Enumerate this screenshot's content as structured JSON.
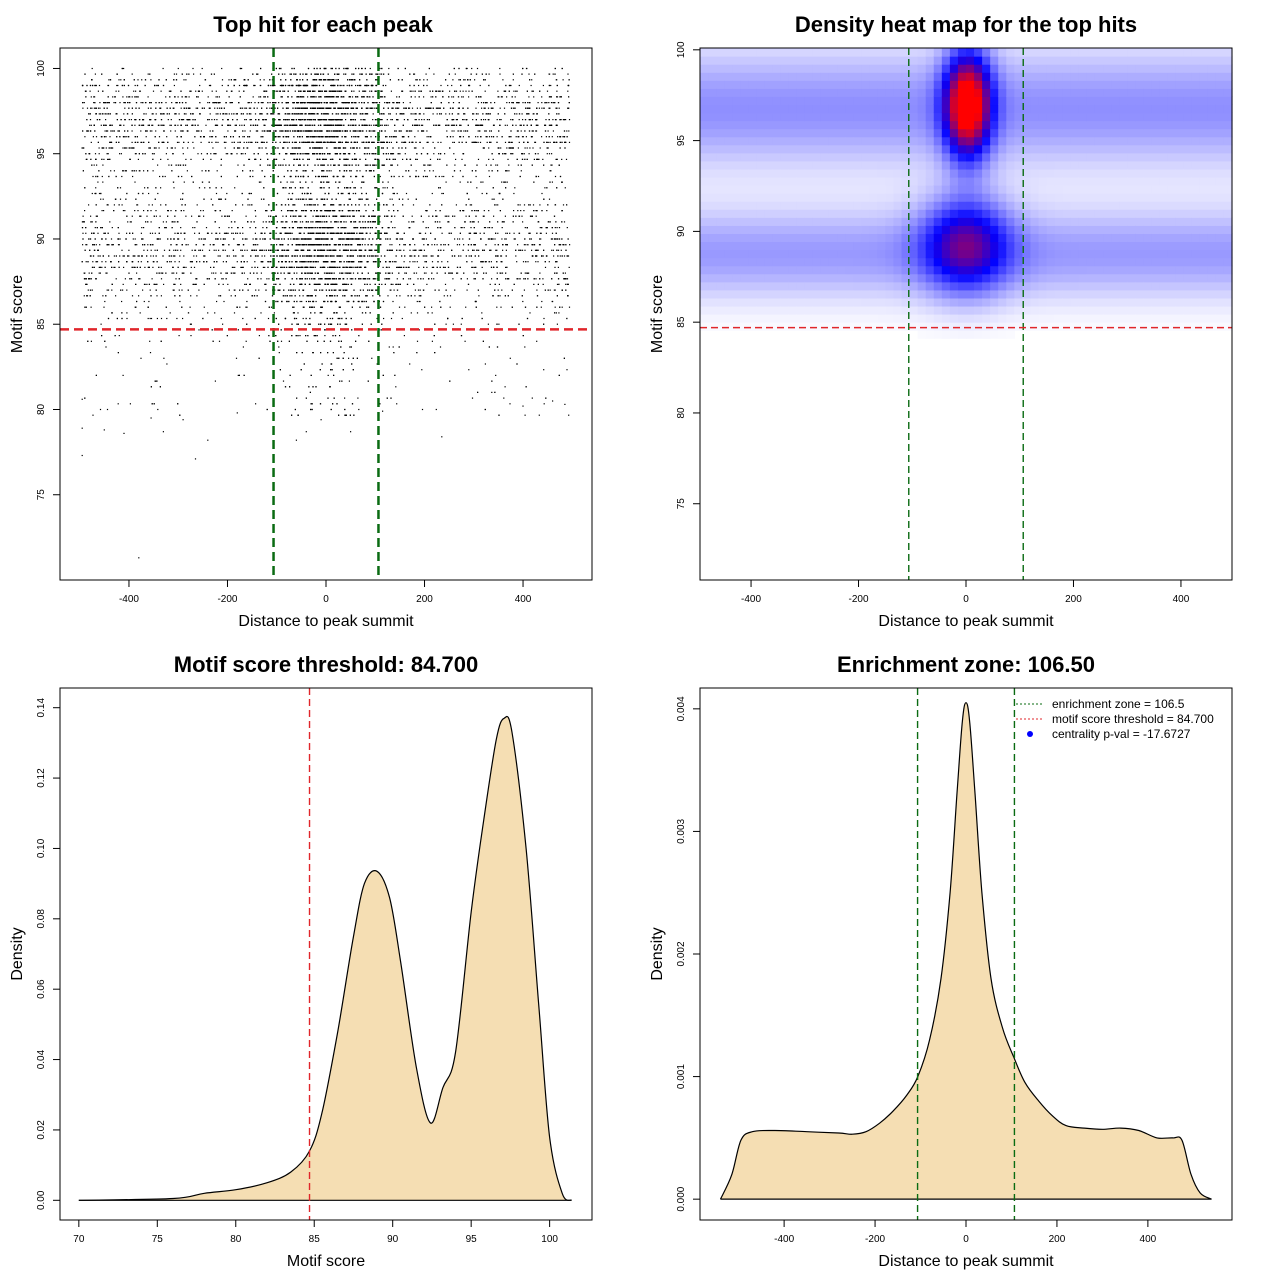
{
  "chart_data": [
    {
      "id": "scatter",
      "type": "scatter",
      "title": "Top hit for each peak",
      "xlabel": "Distance to peak summit",
      "ylabel": "Motif score",
      "xlim": [
        -540,
        540
      ],
      "ylim": [
        70,
        101.2
      ],
      "xticks": [
        "-400",
        "-200",
        "0",
        "200",
        "400"
      ],
      "xtick_values": [
        -400,
        -200,
        0,
        200,
        400
      ],
      "yticks": [
        "75",
        "80",
        "85",
        "90",
        "95",
        "100"
      ],
      "ytick_values": [
        75,
        80,
        85,
        90,
        95,
        100
      ],
      "hlines": [
        {
          "y": 84.7,
          "color": "#e0262b",
          "style": "dashed"
        }
      ],
      "vlines": [
        {
          "x": -106.5,
          "color": "#0a6b12",
          "style": "dashed"
        },
        {
          "x": 106.5,
          "color": "#0a6b12",
          "style": "dashed"
        }
      ],
      "point_color": "#000000",
      "points_description": "approx. 12000 top hits spread over x in [-495, 495], bands near y 89-90 and 95-99, densest around x = 0",
      "outliers": [
        [
          -495,
          80.6
        ],
        [
          -495,
          78.9
        ],
        [
          -495,
          77.3
        ],
        [
          -450,
          78.8
        ],
        [
          -410,
          78.6
        ],
        [
          -380,
          71.3
        ],
        [
          -355,
          79.5
        ],
        [
          -330,
          78.7
        ],
        [
          -290,
          79.4
        ],
        [
          -265,
          77.1
        ],
        [
          -240,
          78.2
        ],
        [
          -180,
          79.8
        ],
        [
          -60,
          78.2
        ],
        [
          -40,
          78.7
        ],
        [
          -10,
          79.4
        ],
        [
          50,
          78.7
        ],
        [
          115,
          79.9
        ],
        [
          235,
          78.4
        ],
        [
          400,
          80.2
        ],
        [
          460,
          80.5
        ],
        [
          485,
          80.3
        ]
      ],
      "grid": false,
      "legend": "none"
    },
    {
      "id": "heatmap",
      "type": "heatmap",
      "title": "Density heat map for the top hits",
      "xlabel": "Distance to peak summit",
      "ylabel": "Motif score",
      "xlim": [
        -495,
        495
      ],
      "ylim": [
        70.8,
        100.1
      ],
      "xticks": [
        "-400",
        "-200",
        "0",
        "200",
        "400"
      ],
      "xtick_values": [
        -400,
        -200,
        0,
        200,
        400
      ],
      "yticks": [
        "75",
        "80",
        "85",
        "90",
        "95",
        "100"
      ],
      "ytick_values": [
        75,
        80,
        85,
        90,
        95,
        100
      ],
      "colors": [
        "#ffffff",
        "#0000ff",
        "#ff0000"
      ],
      "hotspots": [
        {
          "x": 3,
          "y": 97,
          "sx": 30,
          "sy": 2.0,
          "peak": 1.0
        },
        {
          "x": 0,
          "y": 89.3,
          "sx": 55,
          "sy": 1.8,
          "peak": 0.55
        }
      ],
      "bands": [
        {
          "y": 96.8,
          "sy": 2.2,
          "level": 0.22
        },
        {
          "y": 88.8,
          "sy": 1.7,
          "level": 0.2
        }
      ],
      "hlines": [
        {
          "y": 84.7,
          "color": "#e0262b",
          "style": "dashed"
        }
      ],
      "vlines": [
        {
          "x": -106.5,
          "color": "#0a6b12",
          "style": "dashed"
        },
        {
          "x": 106.5,
          "color": "#0a6b12",
          "style": "dashed"
        }
      ],
      "legend": "none"
    },
    {
      "id": "score-density",
      "type": "area",
      "title": "Motif score threshold: 84.700",
      "xlabel": "Motif score",
      "ylabel": "Density",
      "xlim": [
        68.8,
        102.7
      ],
      "ylim": [
        -0.0056,
        0.1456
      ],
      "xticks": [
        "70",
        "75",
        "80",
        "85",
        "90",
        "95",
        "100"
      ],
      "xtick_values": [
        70,
        75,
        80,
        85,
        90,
        95,
        100
      ],
      "yticks": [
        "0.00",
        "0.02",
        "0.04",
        "0.06",
        "0.08",
        "0.10",
        "0.12",
        "0.14"
      ],
      "ytick_values": [
        0,
        0.02,
        0.04,
        0.06,
        0.08,
        0.1,
        0.12,
        0.14
      ],
      "fill": "#f5deb3",
      "x": [
        70,
        76,
        78,
        80,
        82,
        83.5,
        84.7,
        85.5,
        86.5,
        87.5,
        88.2,
        89,
        89.8,
        90.5,
        91.5,
        92.4,
        93.2,
        94,
        95,
        95.8,
        96.6,
        97.1,
        97.6,
        98.5,
        99.3,
        100,
        100.8,
        101.4
      ],
      "y": [
        0,
        0.0005,
        0.002,
        0.003,
        0.005,
        0.008,
        0.014,
        0.025,
        0.048,
        0.075,
        0.09,
        0.0935,
        0.086,
        0.068,
        0.038,
        0.022,
        0.032,
        0.042,
        0.082,
        0.108,
        0.131,
        0.137,
        0.133,
        0.1,
        0.056,
        0.018,
        0.002,
        0
      ],
      "vlines": [
        {
          "x": 84.7,
          "color": "#e0262b",
          "style": "dashed"
        }
      ],
      "legend": "none"
    },
    {
      "id": "distance-density",
      "type": "area",
      "title": "Enrichment zone: 106.50",
      "xlabel": "Distance to peak summit",
      "ylabel": "Density",
      "xlim": [
        -585,
        585
      ],
      "ylim": [
        -0.00017,
        0.00417
      ],
      "xticks": [
        "-400",
        "-200",
        "0",
        "200",
        "400"
      ],
      "xtick_values": [
        -400,
        -200,
        0,
        200,
        400
      ],
      "yticks": [
        "0.000",
        "0.001",
        "0.002",
        "0.003",
        "0.004"
      ],
      "ytick_values": [
        0,
        0.001,
        0.002,
        0.003,
        0.004
      ],
      "fill": "#f5deb3",
      "x": [
        -540,
        -515,
        -495,
        -470,
        -420,
        -350,
        -280,
        -250,
        -220,
        -190,
        -160,
        -130,
        -106,
        -80,
        -55,
        -35,
        -20,
        -8,
        0,
        8,
        20,
        35,
        55,
        80,
        106,
        130,
        160,
        190,
        220,
        260,
        300,
        340,
        380,
        420,
        455,
        475,
        495,
        515,
        540
      ],
      "y": [
        0,
        0.0002,
        0.00048,
        0.00055,
        0.00056,
        0.00055,
        0.00054,
        0.00053,
        0.00055,
        0.00062,
        0.00072,
        0.00085,
        0.001,
        0.0013,
        0.0018,
        0.0025,
        0.0033,
        0.0039,
        0.00405,
        0.0039,
        0.0033,
        0.0025,
        0.0018,
        0.0014,
        0.00115,
        0.00095,
        0.0008,
        0.00068,
        0.0006,
        0.00058,
        0.00057,
        0.00058,
        0.00056,
        0.0005,
        0.0005,
        0.00048,
        0.0002,
        5e-05,
        0
      ],
      "vlines": [
        {
          "x": -106.5,
          "color": "#0a6b12",
          "style": "dashed"
        },
        {
          "x": 106.5,
          "color": "#0a6b12",
          "style": "dashed"
        }
      ],
      "legend_position": "top-right",
      "legend": [
        {
          "label": "enrichment zone = 106.5",
          "kind": "dotted-line",
          "color": "#0a6b12"
        },
        {
          "label": "motif score threshold = 84.700",
          "kind": "dotted-line",
          "color": "#e0262b"
        },
        {
          "label": "centrality p-val = -17.6727",
          "kind": "point",
          "color": "#0000ff"
        }
      ]
    }
  ]
}
